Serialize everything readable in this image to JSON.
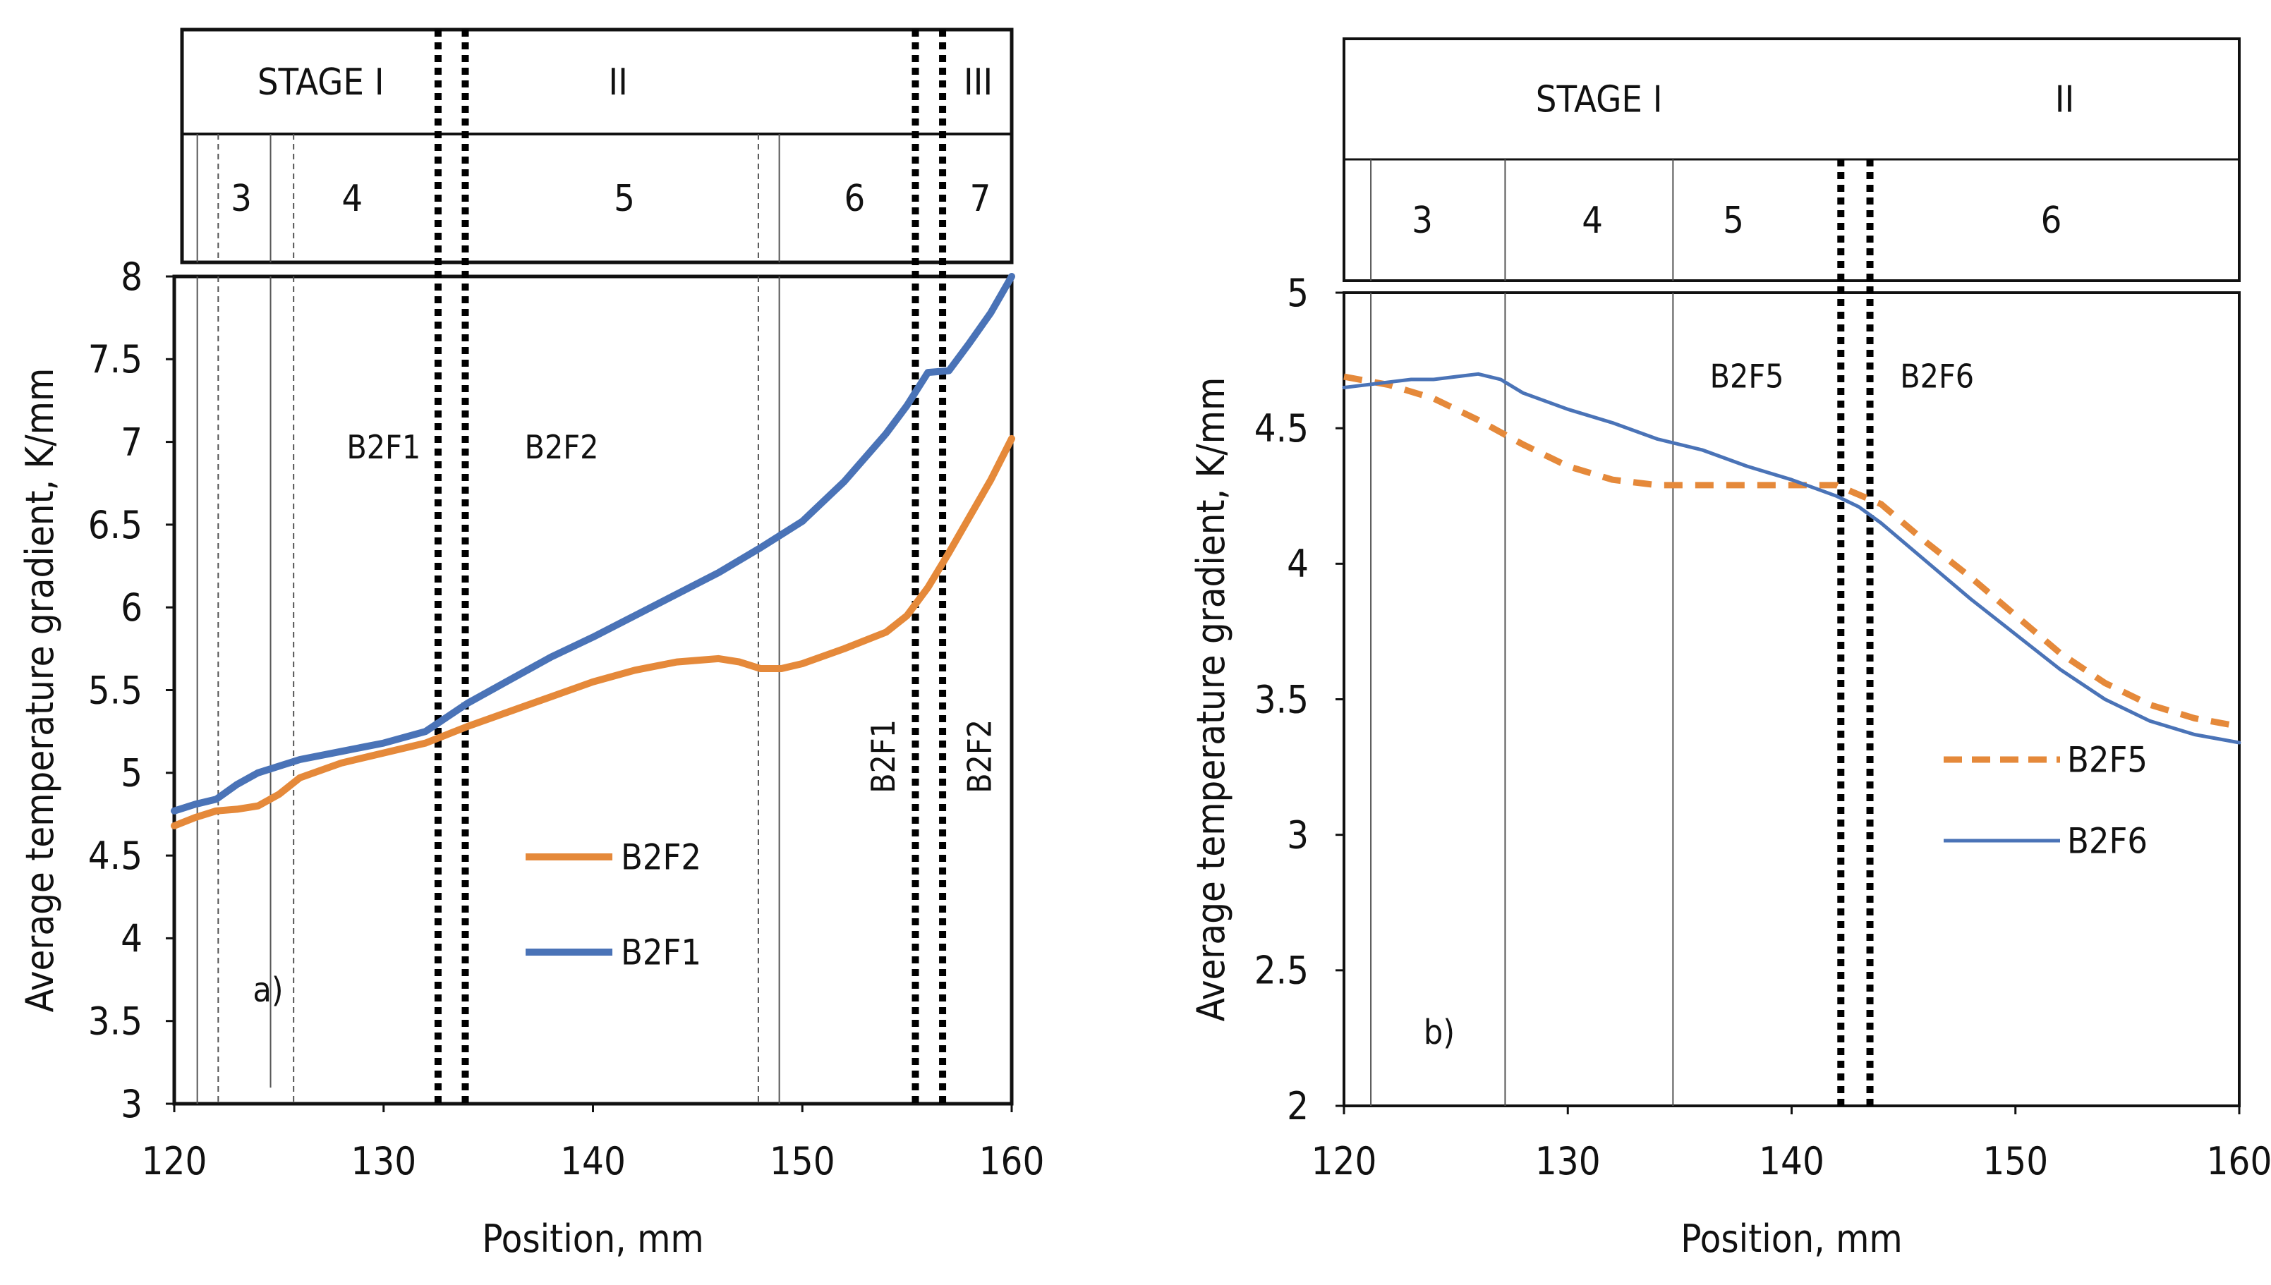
{
  "chart_data": [
    {
      "type": "line",
      "panel_label": "a)",
      "xlabel": "Position, mm",
      "ylabel": "Average temperature gradient, K/mm",
      "xlim": [
        120,
        160
      ],
      "ylim": [
        3,
        8
      ],
      "x_ticks": [
        "120",
        "130",
        "140",
        "150",
        "160"
      ],
      "y_ticks": [
        "3",
        "3.5",
        "4",
        "4.5",
        "5",
        "5.5",
        "6",
        "6.5",
        "7",
        "7.5",
        "8"
      ],
      "legend": [
        "B2F2",
        "B2F1"
      ],
      "legend_position": "lower-center",
      "stage_row": [
        {
          "label": "STAGE I",
          "x_center": 127
        },
        {
          "label": "II",
          "x_center": 141.2
        },
        {
          "label": "III",
          "x_center": 158.4
        }
      ],
      "zone_row": [
        {
          "label": "3",
          "x_center": 123.2
        },
        {
          "label": "4",
          "x_center": 128.5
        },
        {
          "label": "5",
          "x_center": 141.5
        },
        {
          "label": "6",
          "x_center": 152.5
        },
        {
          "label": "7",
          "x_center": 158.5
        }
      ],
      "zone_lines": [
        {
          "x": 121.1,
          "style": "solid"
        },
        {
          "x": 122.1,
          "style": "dashed"
        },
        {
          "x": 124.6,
          "style": "solid"
        },
        {
          "x": 125.7,
          "style": "dashed"
        },
        {
          "x": 147.9,
          "style": "dashed"
        },
        {
          "x": 148.9,
          "style": "solid"
        }
      ],
      "end_lines": [
        {
          "x": 132.6,
          "curve": "B2F1",
          "label": ""
        },
        {
          "x": 133.9,
          "curve": "B2F2",
          "label": ""
        },
        {
          "x": 155.4,
          "curve": "B2F1",
          "label": ""
        },
        {
          "x": 156.7,
          "curve": "B2F2",
          "label": ""
        }
      ],
      "annotations": [
        {
          "text": "B2F1",
          "x": 130.0,
          "y": 6.9,
          "rotated": false
        },
        {
          "text": "B2F2",
          "x": 138.5,
          "y": 6.9,
          "rotated": false
        },
        {
          "text": "B2F1",
          "x": 154.4,
          "y": 5.1,
          "rotated": true
        },
        {
          "text": "B2F2",
          "x": 159.0,
          "y": 5.1,
          "rotated": true
        }
      ],
      "series": [
        {
          "name": "B2F2",
          "color": "#e5893a",
          "style": "solid",
          "x": [
            120,
            121,
            122,
            123,
            124,
            125,
            126,
            128,
            130,
            132,
            134,
            136,
            138,
            140,
            142,
            144,
            146,
            147,
            148,
            149,
            150,
            152,
            154,
            155,
            156,
            157,
            158,
            159,
            160
          ],
          "y": [
            4.68,
            4.73,
            4.77,
            4.78,
            4.8,
            4.87,
            4.97,
            5.06,
            5.12,
            5.18,
            5.28,
            5.37,
            5.46,
            5.55,
            5.62,
            5.67,
            5.69,
            5.67,
            5.63,
            5.63,
            5.66,
            5.75,
            5.85,
            5.95,
            6.12,
            6.33,
            6.55,
            6.77,
            7.02
          ]
        },
        {
          "name": "B2F1",
          "color": "#4a73b7",
          "style": "solid",
          "x": [
            120,
            121,
            122,
            123,
            124,
            125,
            126,
            128,
            130,
            132,
            134,
            136,
            138,
            140,
            142,
            144,
            146,
            148,
            150,
            152,
            154,
            155,
            156,
            157,
            158,
            159,
            160
          ],
          "y": [
            4.77,
            4.81,
            4.84,
            4.93,
            5.0,
            5.04,
            5.08,
            5.13,
            5.18,
            5.25,
            5.42,
            5.56,
            5.7,
            5.82,
            5.95,
            6.08,
            6.21,
            6.36,
            6.52,
            6.76,
            7.05,
            7.22,
            7.42,
            7.43,
            7.6,
            7.78,
            8.0
          ]
        }
      ]
    },
    {
      "type": "line",
      "panel_label": "b)",
      "xlabel": "Position, mm",
      "ylabel": "Average temperature gradient, K/mm",
      "xlim": [
        120,
        160
      ],
      "ylim": [
        2,
        5
      ],
      "x_ticks": [
        "120",
        "130",
        "140",
        "150",
        "160"
      ],
      "y_ticks": [
        "2",
        "2.5",
        "3",
        "3.5",
        "4",
        "4.5",
        "5"
      ],
      "legend": [
        "B2F5",
        "B2F6"
      ],
      "legend_position": "right",
      "stage_row": [
        {
          "label": "STAGE I",
          "x_center": 131.4
        },
        {
          "label": "II",
          "x_center": 152.2
        }
      ],
      "zone_row": [
        {
          "label": "3",
          "x_center": 123.5
        },
        {
          "label": "4",
          "x_center": 131.1
        },
        {
          "label": "5",
          "x_center": 137.4
        },
        {
          "label": "6",
          "x_center": 151.6
        }
      ],
      "zone_lines": [
        {
          "x": 121.2,
          "style": "solid"
        },
        {
          "x": 127.2,
          "style": "solid"
        },
        {
          "x": 134.7,
          "style": "solid"
        }
      ],
      "end_lines": [
        {
          "x": 142.2,
          "curve": "B2F5"
        },
        {
          "x": 143.5,
          "curve": "B2F6"
        }
      ],
      "annotations": [
        {
          "text": "B2F5",
          "x": 138.0,
          "y": 4.65,
          "rotated": false
        },
        {
          "text": "B2F6",
          "x": 146.5,
          "y": 4.65,
          "rotated": false
        }
      ],
      "series": [
        {
          "name": "B2F5",
          "color": "#e5893a",
          "style": "dashed",
          "x": [
            120,
            122,
            124,
            126,
            128,
            130,
            132,
            134,
            136,
            138,
            140,
            142,
            144,
            146,
            148,
            150,
            152,
            154,
            156,
            158,
            160
          ],
          "y": [
            4.69,
            4.66,
            4.61,
            4.53,
            4.44,
            4.36,
            4.31,
            4.29,
            4.29,
            4.29,
            4.29,
            4.29,
            4.22,
            4.08,
            3.95,
            3.81,
            3.67,
            3.56,
            3.48,
            3.43,
            3.4
          ]
        },
        {
          "name": "B2F6",
          "color": "#4a73b7",
          "style": "solid",
          "x": [
            120,
            121,
            122,
            123,
            124,
            125,
            126,
            127,
            128,
            130,
            132,
            134,
            136,
            138,
            140,
            142,
            143,
            144,
            146,
            148,
            150,
            152,
            154,
            156,
            158,
            160
          ],
          "y": [
            4.65,
            4.66,
            4.67,
            4.68,
            4.68,
            4.69,
            4.7,
            4.68,
            4.63,
            4.57,
            4.52,
            4.46,
            4.42,
            4.36,
            4.31,
            4.25,
            4.21,
            4.15,
            4.01,
            3.87,
            3.74,
            3.61,
            3.5,
            3.42,
            3.37,
            3.34
          ]
        }
      ]
    }
  ]
}
